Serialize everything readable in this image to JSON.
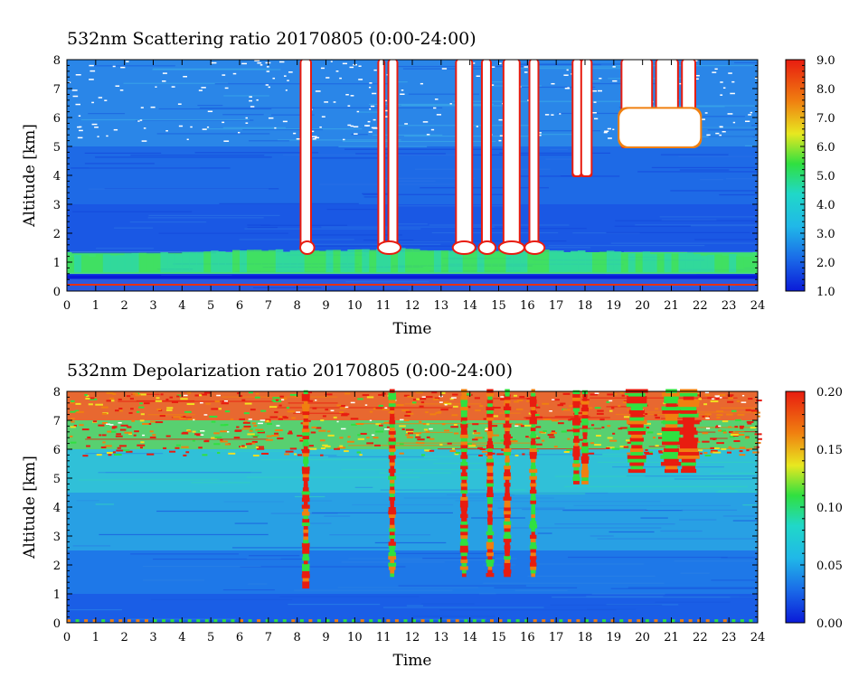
{
  "chart_data": [
    {
      "type": "heatmap",
      "title": "532nm Scattering ratio  20170805 (0:00-24:00)",
      "xlabel": "Time",
      "ylabel": "Altitude [km]",
      "xlim": [
        0,
        24
      ],
      "ylim": [
        0,
        8
      ],
      "xticks": [
        "0",
        "1",
        "2",
        "3",
        "4",
        "5",
        "6",
        "7",
        "8",
        "9",
        "10",
        "11",
        "12",
        "13",
        "14",
        "15",
        "16",
        "17",
        "18",
        "19",
        "20",
        "21",
        "22",
        "23",
        "24"
      ],
      "yticks": [
        "0",
        "1",
        "2",
        "3",
        "4",
        "5",
        "6",
        "7",
        "8"
      ],
      "colorbar": {
        "min": 1.0,
        "max": 9.0,
        "ticks": [
          "1.0",
          "2.0",
          "3.0",
          "4.0",
          "5.0",
          "6.0",
          "7.0",
          "8.0",
          "9.0"
        ]
      },
      "features": {
        "boundary_layer_km": [
          0.5,
          1.3
        ],
        "cloud_base_km": 1.5,
        "saturated_columns_hours": [
          [
            8.15,
            8.45
          ],
          [
            10.85,
            11.0
          ],
          [
            11.2,
            11.45
          ],
          [
            13.55,
            14.05
          ],
          [
            14.45,
            14.7
          ],
          [
            15.2,
            15.7
          ],
          [
            16.1,
            16.35
          ],
          [
            17.6,
            17.85
          ],
          [
            17.9,
            18.2
          ],
          [
            19.3,
            20.3
          ],
          [
            20.5,
            21.2
          ],
          [
            21.4,
            21.8
          ]
        ],
        "upper_cloud_km": [
          5.0,
          6.3
        ]
      }
    },
    {
      "type": "heatmap",
      "title": "532nm Depolarization ratio  20170805 (0:00-24:00)",
      "xlabel": "Time",
      "ylabel": "Altitude [km]",
      "xlim": [
        0,
        24
      ],
      "ylim": [
        0,
        8
      ],
      "xticks": [
        "0",
        "1",
        "2",
        "3",
        "4",
        "5",
        "6",
        "7",
        "8",
        "9",
        "10",
        "11",
        "12",
        "13",
        "14",
        "15",
        "16",
        "17",
        "18",
        "19",
        "20",
        "21",
        "22",
        "23",
        "24"
      ],
      "yticks": [
        "0",
        "1",
        "2",
        "3",
        "4",
        "5",
        "6",
        "7",
        "8"
      ],
      "colorbar": {
        "min": 0.0,
        "max": 0.2,
        "ticks": [
          "0.00",
          "0.05",
          "0.10",
          "0.15",
          "0.20"
        ]
      },
      "features": {
        "high_depol_upper_km": [
          6.0,
          8.0
        ],
        "ice_fall_streaks_hours": [
          8.3,
          11.3,
          13.8,
          14.7,
          15.3,
          16.2,
          17.7,
          18.0,
          19.8,
          21.0,
          21.6
        ]
      }
    }
  ],
  "colors": {
    "low": "#0a1ad8",
    "mid_low": "#1a8ee8",
    "mid": "#20d8c8",
    "mid_high": "#30e040",
    "high": "#f0e020",
    "very_high": "#f08010",
    "max": "#e81c10",
    "saturated": "#ffffff"
  }
}
